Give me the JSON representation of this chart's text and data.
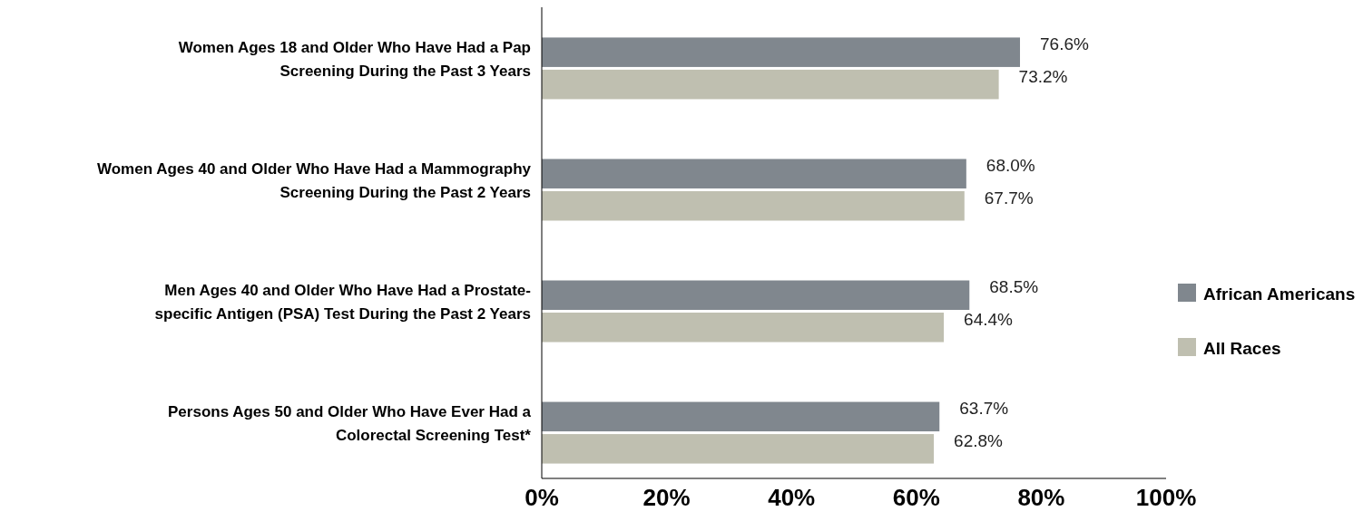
{
  "chart_data": {
    "type": "bar",
    "orientation": "horizontal",
    "categories": [
      "Women Ages 18 and Older Who Have Had a Pap Screening During the Past 3 Years",
      "Women Ages 40 and Older Who Have Had a Mammography Screening During the Past 2 Years",
      "Men Ages 40 and Older Who Have Had a Prostate-specific Antigen (PSA) Test During the Past 2 Years",
      "Persons Ages 50 and Older Who Have Ever Had a Colorectal Screening Test*"
    ],
    "series": [
      {
        "name": "African Americans",
        "color": "#80878e",
        "values": [
          76.6,
          68.0,
          68.5,
          63.7
        ],
        "value_labels": [
          "76.6%",
          "68.0%",
          "68.5%",
          "63.7%"
        ]
      },
      {
        "name": "All Races",
        "color": "#bfbfb0",
        "values": [
          73.2,
          67.7,
          64.4,
          62.8
        ],
        "value_labels": [
          "73.2%",
          "67.7%",
          "64.4%",
          "62.8%"
        ]
      }
    ],
    "xlim": [
      0,
      100
    ],
    "xticks": [
      {
        "value": 0,
        "label": "0%"
      },
      {
        "value": 20,
        "label": "20%"
      },
      {
        "value": 40,
        "label": "40%"
      },
      {
        "value": 60,
        "label": "60%"
      },
      {
        "value": 80,
        "label": "80%"
      },
      {
        "value": 100,
        "label": "100%"
      }
    ],
    "grid": false,
    "legend": "right"
  }
}
